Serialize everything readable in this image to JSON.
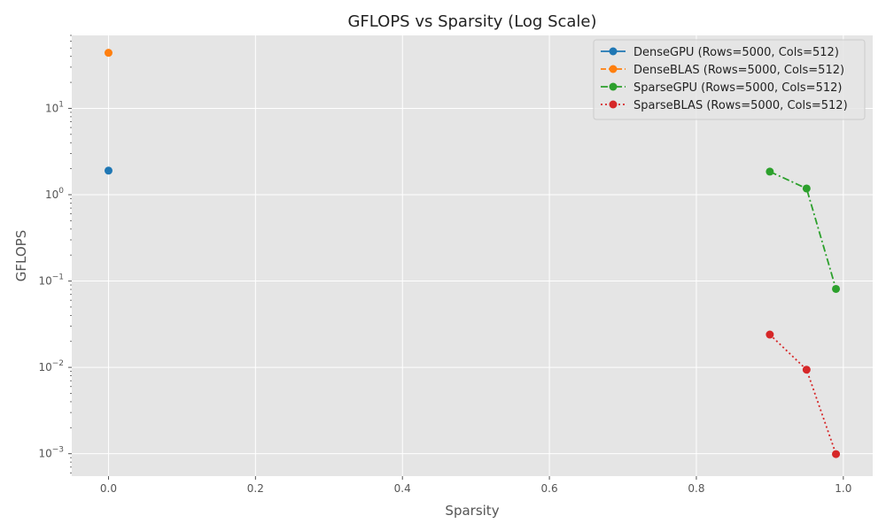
{
  "chart_data": {
    "type": "line",
    "title": "GFLOPS vs Sparsity (Log Scale)",
    "xlabel": "Sparsity",
    "ylabel": "GFLOPS",
    "xlim": [
      -0.05,
      1.04
    ],
    "ylim": [
      0.00055,
      70
    ],
    "yscale": "log",
    "grid": true,
    "legend_position": "top-right",
    "x_ticks": [
      "0.0",
      "0.2",
      "0.4",
      "0.6",
      "0.8",
      "1.0"
    ],
    "y_ticks": [
      {
        "value": 0.001,
        "base": "10",
        "exp": "−3"
      },
      {
        "value": 0.01,
        "base": "10",
        "exp": "−2"
      },
      {
        "value": 0.1,
        "base": "10",
        "exp": "−1"
      },
      {
        "value": 1,
        "base": "10",
        "exp": "0"
      },
      {
        "value": 10,
        "base": "10",
        "exp": "1"
      }
    ],
    "series": [
      {
        "name": "DenseGPU (Rows=5000, Cols=512)",
        "color": "#1f77b4",
        "dash": "solid",
        "x": [
          0.0
        ],
        "y": [
          1.9
        ]
      },
      {
        "name": "DenseBLAS (Rows=5000, Cols=512)",
        "color": "#ff7f0e",
        "dash": "dashed",
        "x": [
          0.0
        ],
        "y": [
          44
        ]
      },
      {
        "name": "SparseGPU (Rows=5000, Cols=512)",
        "color": "#2ca02c",
        "dash": "dashdot",
        "x": [
          0.9,
          0.95,
          0.99
        ],
        "y": [
          1.85,
          1.18,
          0.081
        ]
      },
      {
        "name": "SparseBLAS (Rows=5000, Cols=512)",
        "color": "#d62728",
        "dash": "dotted",
        "x": [
          0.9,
          0.95,
          0.99
        ],
        "y": [
          0.024,
          0.0094,
          0.00099
        ]
      }
    ]
  }
}
